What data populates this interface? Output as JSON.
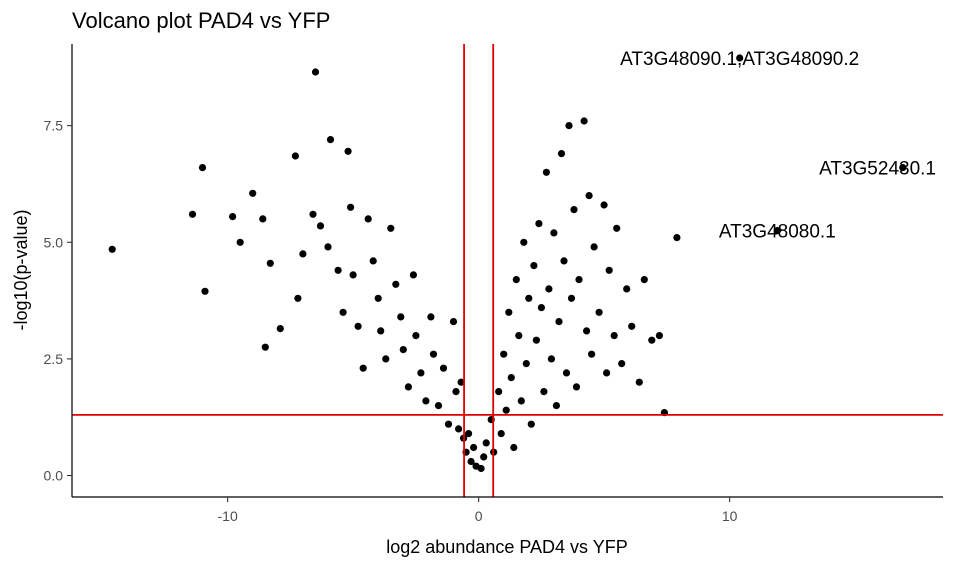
{
  "chart_data": {
    "type": "scatter",
    "title": "Volcano plot PAD4 vs YFP",
    "xlabel": "log2 abundance PAD4 vs YFP",
    "ylabel": "-log10(p-value)",
    "xlim": [
      -16.2,
      18.5
    ],
    "ylim": [
      -0.46,
      9.25
    ],
    "x_ticks": [
      -10,
      0,
      10
    ],
    "x_tick_labels": [
      "-10",
      "0",
      "10"
    ],
    "y_ticks": [
      0,
      2.5,
      5,
      7.5
    ],
    "y_tick_labels": [
      "0.0",
      "2.5",
      "5.0",
      "7.5"
    ],
    "grid": false,
    "point_color": "#000000",
    "threshold_color": "#e00000",
    "thresholds": {
      "x": [
        -0.58,
        0.58
      ],
      "y": 1.3
    },
    "annotations": [
      {
        "text": "AT3G48090.1;AT3G48090.2",
        "x": 10.4,
        "y": 8.95
      },
      {
        "text": "AT3G52430.1",
        "x": 16.9,
        "y": 6.6
      },
      {
        "text": "AT3G48080.1",
        "x": 11.9,
        "y": 5.25
      }
    ],
    "points": [
      [
        -14.6,
        4.85
      ],
      [
        -11.0,
        6.6
      ],
      [
        -11.4,
        5.6
      ],
      [
        -10.9,
        3.95
      ],
      [
        -9.8,
        5.55
      ],
      [
        -9.5,
        5.0
      ],
      [
        -9.0,
        6.05
      ],
      [
        -8.6,
        5.5
      ],
      [
        -8.3,
        4.55
      ],
      [
        -8.5,
        2.75
      ],
      [
        -7.9,
        3.15
      ],
      [
        -7.3,
        6.85
      ],
      [
        -7.0,
        4.75
      ],
      [
        -7.2,
        3.8
      ],
      [
        -6.5,
        8.65
      ],
      [
        -6.6,
        5.6
      ],
      [
        -6.3,
        5.35
      ],
      [
        -6.0,
        4.9
      ],
      [
        -5.9,
        7.2
      ],
      [
        -5.6,
        4.4
      ],
      [
        -5.4,
        3.5
      ],
      [
        -5.2,
        6.95
      ],
      [
        -5.1,
        5.75
      ],
      [
        -5.0,
        4.3
      ],
      [
        -4.8,
        3.2
      ],
      [
        -4.6,
        2.3
      ],
      [
        -4.4,
        5.5
      ],
      [
        -4.2,
        4.6
      ],
      [
        -4.0,
        3.8
      ],
      [
        -3.9,
        3.1
      ],
      [
        -3.7,
        2.5
      ],
      [
        -3.5,
        5.3
      ],
      [
        -3.3,
        4.1
      ],
      [
        -3.1,
        3.4
      ],
      [
        -3.0,
        2.7
      ],
      [
        -2.8,
        1.9
      ],
      [
        -2.6,
        4.3
      ],
      [
        -2.5,
        3.0
      ],
      [
        -2.3,
        2.2
      ],
      [
        -2.1,
        1.6
      ],
      [
        -1.9,
        3.4
      ],
      [
        -1.8,
        2.6
      ],
      [
        -1.6,
        1.5
      ],
      [
        -1.4,
        2.3
      ],
      [
        -1.2,
        1.1
      ],
      [
        -1.0,
        3.3
      ],
      [
        -0.9,
        1.8
      ],
      [
        -0.8,
        1.0
      ],
      [
        -0.7,
        2.0
      ],
      [
        -0.6,
        0.8
      ],
      [
        -0.5,
        0.5
      ],
      [
        -0.4,
        0.9
      ],
      [
        -0.3,
        0.3
      ],
      [
        -0.2,
        0.6
      ],
      [
        -0.1,
        0.2
      ],
      [
        0.1,
        0.15
      ],
      [
        0.2,
        0.4
      ],
      [
        0.3,
        0.7
      ],
      [
        0.5,
        1.2
      ],
      [
        0.6,
        0.5
      ],
      [
        0.8,
        1.8
      ],
      [
        0.9,
        0.9
      ],
      [
        1.0,
        2.6
      ],
      [
        1.1,
        1.4
      ],
      [
        1.2,
        3.5
      ],
      [
        1.3,
        2.1
      ],
      [
        1.4,
        0.6
      ],
      [
        1.5,
        4.2
      ],
      [
        1.6,
        3.0
      ],
      [
        1.7,
        1.6
      ],
      [
        1.8,
        5.0
      ],
      [
        1.9,
        2.4
      ],
      [
        2.0,
        3.8
      ],
      [
        2.1,
        1.1
      ],
      [
        2.2,
        4.5
      ],
      [
        2.3,
        2.9
      ],
      [
        2.4,
        5.4
      ],
      [
        2.5,
        3.6
      ],
      [
        2.6,
        1.8
      ],
      [
        2.7,
        6.5
      ],
      [
        2.8,
        4.0
      ],
      [
        2.9,
        2.5
      ],
      [
        3.0,
        5.2
      ],
      [
        3.1,
        1.5
      ],
      [
        3.2,
        3.3
      ],
      [
        3.3,
        6.9
      ],
      [
        3.4,
        4.6
      ],
      [
        3.5,
        2.2
      ],
      [
        3.6,
        7.5
      ],
      [
        3.7,
        3.8
      ],
      [
        3.8,
        5.7
      ],
      [
        3.9,
        1.9
      ],
      [
        4.0,
        4.2
      ],
      [
        4.2,
        7.6
      ],
      [
        4.3,
        3.1
      ],
      [
        4.4,
        6.0
      ],
      [
        4.5,
        2.6
      ],
      [
        4.6,
        4.9
      ],
      [
        4.8,
        3.5
      ],
      [
        5.0,
        5.8
      ],
      [
        5.1,
        2.2
      ],
      [
        5.2,
        4.4
      ],
      [
        5.4,
        3.0
      ],
      [
        5.5,
        5.3
      ],
      [
        5.7,
        2.4
      ],
      [
        5.9,
        4.0
      ],
      [
        6.1,
        3.2
      ],
      [
        6.4,
        2.0
      ],
      [
        6.6,
        4.2
      ],
      [
        6.9,
        2.9
      ],
      [
        7.2,
        3.0
      ],
      [
        7.4,
        1.35
      ],
      [
        7.9,
        5.1
      ],
      [
        10.4,
        8.95
      ],
      [
        11.9,
        5.25
      ],
      [
        16.9,
        6.6
      ]
    ]
  }
}
